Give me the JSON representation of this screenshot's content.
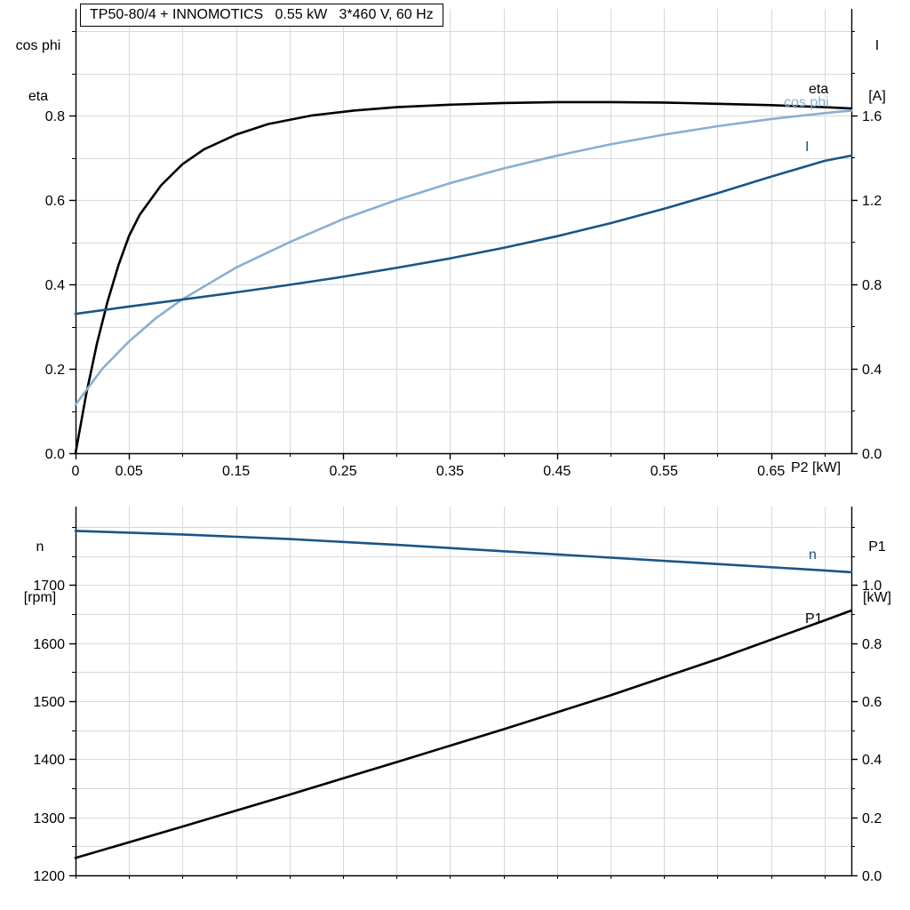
{
  "title": "TP50-80/4 + INNOMOTICS   0.55 kW   3*460 V, 60 Hz",
  "colors": {
    "curve_black": "#000000",
    "dark_blue": "#1a5586",
    "light_blue": "#8aaed2",
    "grid": "#d8d8d8",
    "axis": "#000000"
  },
  "labels": {
    "top_left_line1": "cos phi",
    "top_left_line2": "eta",
    "top_right_line1": "I",
    "top_right_line2": "[A]",
    "bottom_left_line1": "n",
    "bottom_left_line2": "[rpm]",
    "bottom_right_line1": "P1",
    "bottom_right_line2": "[kW]",
    "x_axis_label": "P2 [kW]",
    "curve_eta": "eta",
    "curve_cos_phi": "cos phi",
    "curve_current": "I",
    "curve_speed": "n",
    "curve_power_in": "P1"
  },
  "chart_data": [
    {
      "type": "line",
      "title": "TP50-80/4 + INNOMOTICS   0.55 kW   3*460 V, 60 Hz",
      "xlabel": "P2 [kW]",
      "xlim": [
        0,
        0.725
      ],
      "x_grid_step": 0.05,
      "y_grid_step": 0.1,
      "x_ticks": [
        {
          "v": 0,
          "label": "0"
        },
        {
          "v": 0.05,
          "label": "0.05"
        },
        {
          "v": 0.15,
          "label": "0.15"
        },
        {
          "v": 0.25,
          "label": "0.25"
        },
        {
          "v": 0.35,
          "label": "0.35"
        },
        {
          "v": 0.45,
          "label": "0.45"
        },
        {
          "v": 0.55,
          "label": "0.55"
        },
        {
          "v": 0.65,
          "label": "0.65"
        }
      ],
      "left_axis": {
        "title_lines": [
          "cos phi",
          "eta"
        ],
        "lim": [
          0,
          1.053
        ],
        "minor_step": 0.1,
        "ticks": [
          {
            "v": 0,
            "label": "0.0"
          },
          {
            "v": 0.2,
            "label": "0.2"
          },
          {
            "v": 0.4,
            "label": "0.4"
          },
          {
            "v": 0.6,
            "label": "0.6"
          },
          {
            "v": 0.8,
            "label": "0.8"
          }
        ]
      },
      "right_axis": {
        "title_lines": [
          "I",
          "[A]"
        ],
        "lim": [
          0,
          2.105
        ],
        "minor_step": 0.2,
        "ticks": [
          {
            "v": 0,
            "label": "0.0"
          },
          {
            "v": 0.4,
            "label": "0.4"
          },
          {
            "v": 0.8,
            "label": "0.8"
          },
          {
            "v": 1.2,
            "label": "1.2"
          },
          {
            "v": 1.6,
            "label": "1.6"
          }
        ]
      },
      "series": [
        {
          "name": "eta",
          "axis": "left",
          "color_key": "curve_black",
          "x": [
            0,
            0.005,
            0.01,
            0.015,
            0.02,
            0.03,
            0.04,
            0.05,
            0.06,
            0.08,
            0.1,
            0.12,
            0.15,
            0.18,
            0.22,
            0.26,
            0.3,
            0.35,
            0.4,
            0.45,
            0.5,
            0.55,
            0.6,
            0.65,
            0.7,
            0.725
          ],
          "y": [
            0,
            0.07,
            0.14,
            0.2,
            0.26,
            0.36,
            0.445,
            0.515,
            0.565,
            0.635,
            0.685,
            0.72,
            0.755,
            0.78,
            0.8,
            0.812,
            0.82,
            0.826,
            0.83,
            0.832,
            0.832,
            0.831,
            0.828,
            0.825,
            0.82,
            0.817
          ]
        },
        {
          "name": "cos phi",
          "axis": "left",
          "color_key": "light_blue",
          "x": [
            0,
            0.025,
            0.05,
            0.075,
            0.1,
            0.15,
            0.2,
            0.25,
            0.3,
            0.35,
            0.4,
            0.45,
            0.5,
            0.55,
            0.6,
            0.65,
            0.7,
            0.725
          ],
          "y": [
            0.115,
            0.2,
            0.265,
            0.32,
            0.365,
            0.44,
            0.5,
            0.555,
            0.6,
            0.64,
            0.675,
            0.705,
            0.732,
            0.755,
            0.775,
            0.792,
            0.806,
            0.812
          ]
        },
        {
          "name": "I",
          "axis": "right",
          "color_key": "dark_blue",
          "x": [
            0,
            0.05,
            0.1,
            0.15,
            0.2,
            0.25,
            0.3,
            0.35,
            0.4,
            0.45,
            0.5,
            0.55,
            0.6,
            0.65,
            0.7,
            0.725
          ],
          "y": [
            0.66,
            0.695,
            0.728,
            0.762,
            0.798,
            0.836,
            0.878,
            0.923,
            0.973,
            1.028,
            1.09,
            1.158,
            1.232,
            1.31,
            1.385,
            1.41
          ]
        }
      ]
    },
    {
      "type": "line",
      "title": "",
      "xlabel": "",
      "xlim": [
        0,
        0.725
      ],
      "x_grid_step": 0.05,
      "y_grid_step": 50,
      "x_ticks": [],
      "left_axis": {
        "title_lines": [
          "n",
          "[rpm]"
        ],
        "lim": [
          1200,
          1835
        ],
        "minor_step": 50,
        "ticks": [
          {
            "v": 1200,
            "label": "1200"
          },
          {
            "v": 1300,
            "label": "1300"
          },
          {
            "v": 1400,
            "label": "1400"
          },
          {
            "v": 1500,
            "label": "1500"
          },
          {
            "v": 1600,
            "label": "1600"
          },
          {
            "v": 1700,
            "label": "1700"
          }
        ]
      },
      "right_axis": {
        "title_lines": [
          "P1",
          "[kW]"
        ],
        "lim": [
          0,
          1.27
        ],
        "minor_step": 0.1,
        "ticks": [
          {
            "v": 0,
            "label": "0.0"
          },
          {
            "v": 0.2,
            "label": "0.2"
          },
          {
            "v": 0.4,
            "label": "0.4"
          },
          {
            "v": 0.6,
            "label": "0.6"
          },
          {
            "v": 0.8,
            "label": "0.8"
          },
          {
            "v": 1.0,
            "label": "1.0"
          }
        ]
      },
      "series": [
        {
          "name": "n",
          "axis": "left",
          "color_key": "dark_blue",
          "x": [
            0,
            0.1,
            0.2,
            0.3,
            0.4,
            0.5,
            0.6,
            0.7,
            0.725
          ],
          "y": [
            1793,
            1787,
            1779,
            1769,
            1758,
            1747,
            1736,
            1725,
            1722
          ]
        },
        {
          "name": "P1",
          "axis": "right",
          "color_key": "curve_black",
          "x": [
            0,
            0.1,
            0.2,
            0.3,
            0.4,
            0.5,
            0.6,
            0.7,
            0.725
          ],
          "y": [
            0.06,
            0.168,
            0.278,
            0.39,
            0.503,
            0.62,
            0.745,
            0.878,
            0.912
          ]
        }
      ]
    }
  ]
}
